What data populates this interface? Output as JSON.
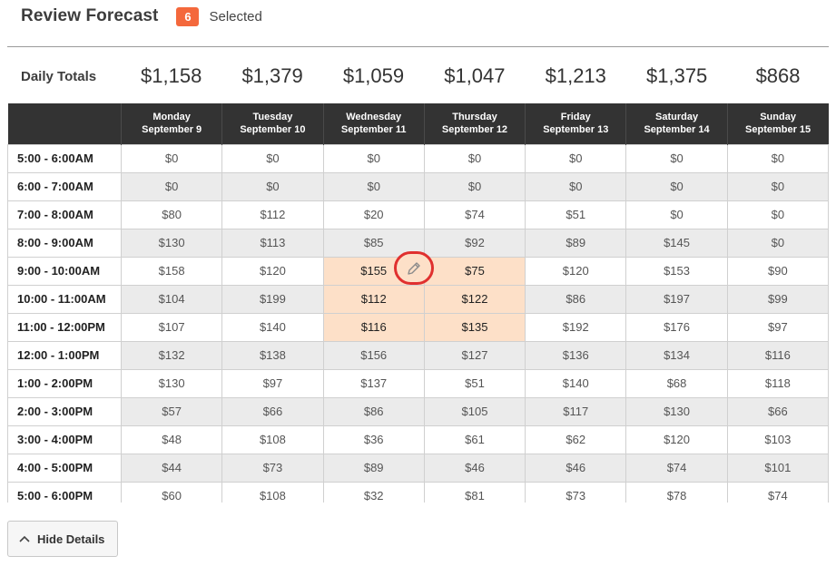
{
  "header": {
    "title": "Review Forecast",
    "selected_count": "6",
    "selected_label": "Selected"
  },
  "totals": {
    "label": "Daily Totals",
    "values": [
      "$1,158",
      "$1,379",
      "$1,059",
      "$1,047",
      "$1,213",
      "$1,375",
      "$868"
    ]
  },
  "days": [
    {
      "name": "Monday",
      "date": "September 9"
    },
    {
      "name": "Tuesday",
      "date": "September 10"
    },
    {
      "name": "Wednesday",
      "date": "September 11"
    },
    {
      "name": "Thursday",
      "date": "September 12"
    },
    {
      "name": "Friday",
      "date": "September 13"
    },
    {
      "name": "Saturday",
      "date": "September 14"
    },
    {
      "name": "Sunday",
      "date": "September 15"
    }
  ],
  "rows": [
    {
      "label": "5:00 - 6:00AM",
      "values": [
        "$0",
        "$0",
        "$0",
        "$0",
        "$0",
        "$0",
        "$0"
      ]
    },
    {
      "label": "6:00 - 7:00AM",
      "values": [
        "$0",
        "$0",
        "$0",
        "$0",
        "$0",
        "$0",
        "$0"
      ]
    },
    {
      "label": "7:00 - 8:00AM",
      "values": [
        "$80",
        "$112",
        "$20",
        "$74",
        "$51",
        "$0",
        "$0"
      ]
    },
    {
      "label": "8:00 - 9:00AM",
      "values": [
        "$130",
        "$113",
        "$85",
        "$92",
        "$89",
        "$145",
        "$0"
      ]
    },
    {
      "label": "9:00 - 10:00AM",
      "values": [
        "$158",
        "$120",
        "$155",
        "$75",
        "$120",
        "$153",
        "$90"
      ]
    },
    {
      "label": "10:00 - 11:00AM",
      "values": [
        "$104",
        "$199",
        "$112",
        "$122",
        "$86",
        "$197",
        "$99"
      ]
    },
    {
      "label": "11:00 - 12:00PM",
      "values": [
        "$107",
        "$140",
        "$116",
        "$135",
        "$192",
        "$176",
        "$97"
      ]
    },
    {
      "label": "12:00 - 1:00PM",
      "values": [
        "$132",
        "$138",
        "$156",
        "$127",
        "$136",
        "$134",
        "$116"
      ]
    },
    {
      "label": "1:00 - 2:00PM",
      "values": [
        "$130",
        "$97",
        "$137",
        "$51",
        "$140",
        "$68",
        "$118"
      ]
    },
    {
      "label": "2:00 - 3:00PM",
      "values": [
        "$57",
        "$66",
        "$86",
        "$105",
        "$117",
        "$130",
        "$66"
      ]
    },
    {
      "label": "3:00 - 4:00PM",
      "values": [
        "$48",
        "$108",
        "$36",
        "$61",
        "$62",
        "$120",
        "$103"
      ]
    },
    {
      "label": "4:00 - 5:00PM",
      "values": [
        "$44",
        "$73",
        "$89",
        "$46",
        "$46",
        "$74",
        "$101"
      ]
    },
    {
      "label": "5:00 - 6:00PM",
      "values": [
        "$60",
        "$108",
        "$32",
        "$81",
        "$73",
        "$78",
        "$74"
      ]
    }
  ],
  "selected_cells": [
    [
      4,
      2
    ],
    [
      4,
      3
    ],
    [
      5,
      2
    ],
    [
      5,
      3
    ],
    [
      6,
      2
    ],
    [
      6,
      3
    ]
  ],
  "edit_icon": "pencil-icon",
  "hide_button": {
    "label": "Hide Details",
    "icon": "chevron-up-icon"
  },
  "colors": {
    "badge": "#f4683c",
    "header_bg": "#333333",
    "selected_cell": "#fde0c8",
    "highlight_ring": "#e0302f"
  }
}
